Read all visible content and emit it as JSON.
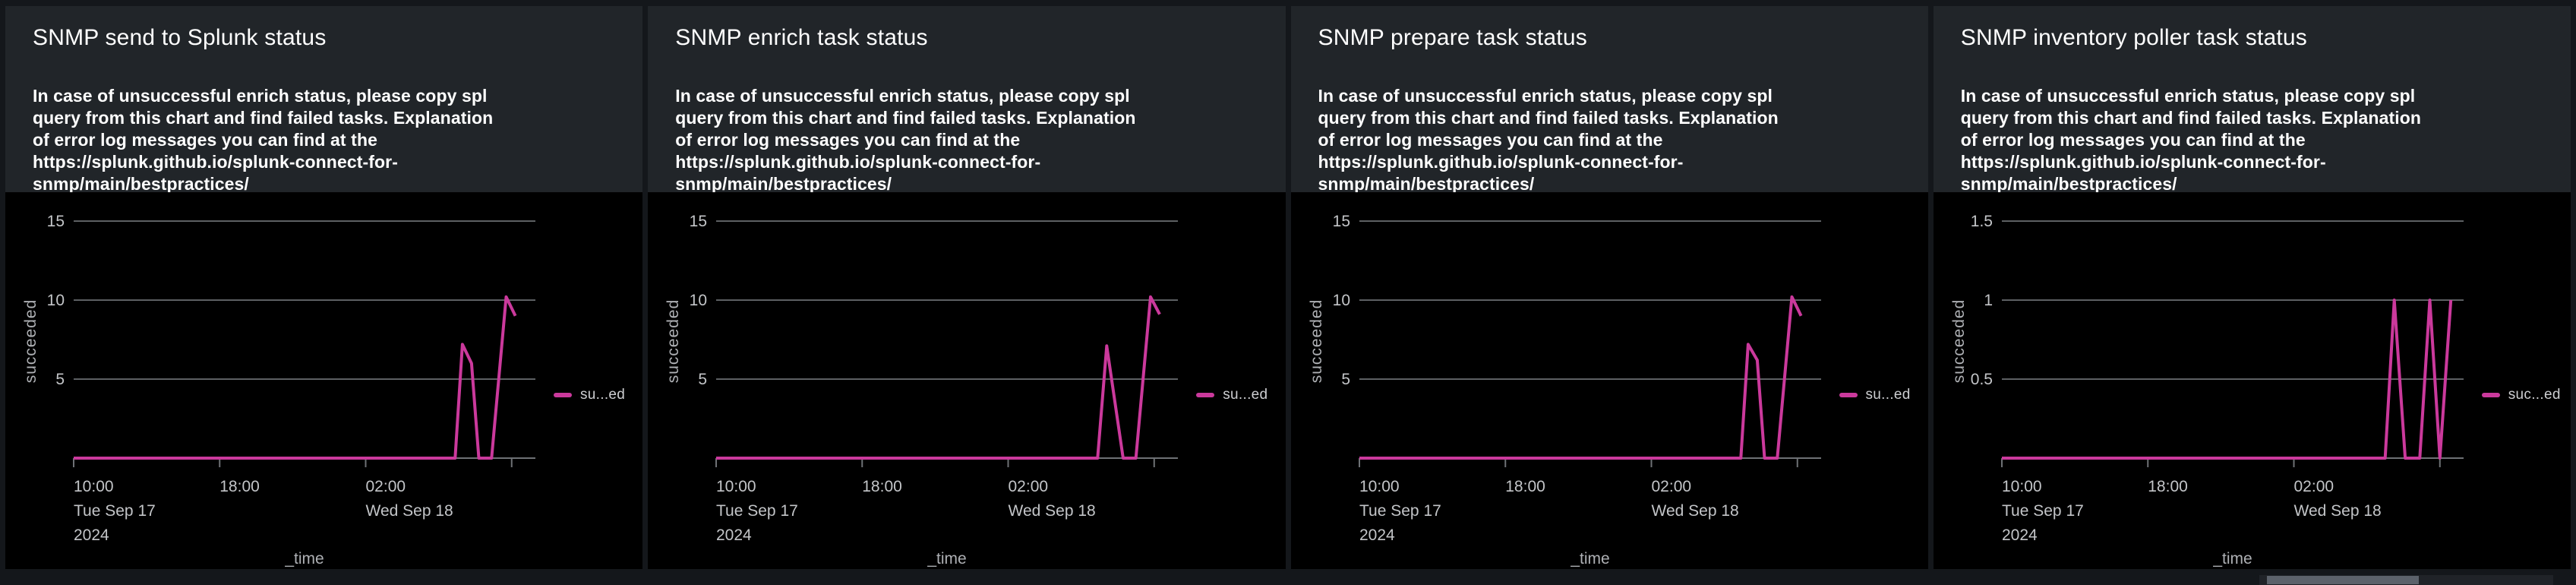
{
  "theme": {
    "page_bg": "#14171b",
    "panel_bg": "#212529",
    "viz_bg": "#000000",
    "title_color": "#ffffff",
    "description_color": "#ffffff",
    "grid_color": "#5d6063",
    "axis_color": "#6e7175",
    "tick_label_color": "#c3c5c8",
    "axis_title_color": "#aeb0b4",
    "legend_text_color": "#cdced1",
    "series_color": "#cb399c",
    "scrollbar_track": "#202328",
    "scrollbar_thumb": "#5c626b"
  },
  "shared": {
    "description": "In case of unsuccessful enrich status, please copy spl\nquery from this chart and find failed tasks. Explanation\nof error log messages you can find at the\nhttps://splunk.github.io/splunk-connect-for-\nsnmp/main/bestpractices/"
  },
  "panels": [
    {
      "title": "SNMP send to Splunk status"
    },
    {
      "title": "SNMP enrich task status"
    },
    {
      "title": "SNMP prepare task status"
    },
    {
      "title": "SNMP inventory poller task status"
    }
  ],
  "chart_data": [
    {
      "type": "line",
      "title": "SNMP send to Splunk status",
      "xlabel": "_time",
      "ylabel": "succeeded",
      "legend_label": "su...ed",
      "series_name": "succeeded",
      "series_color": "#cb399c",
      "grid": true,
      "legend_position": "right",
      "x_start": "Tue Sep 17 2024 10:00",
      "xlim_hours": [
        0,
        25.3
      ],
      "ylim": [
        0,
        15.4
      ],
      "x_ticks": [
        {
          "h": 0,
          "time": "10:00",
          "day": "Tue Sep 17",
          "year": "2024"
        },
        {
          "h": 8,
          "time": "18:00"
        },
        {
          "h": 16,
          "time": "02:00",
          "day": "Wed Sep 18"
        },
        {
          "h": 24
        }
      ],
      "y_ticks": [
        {
          "v": 5,
          "label": "5"
        },
        {
          "v": 10,
          "label": "10"
        },
        {
          "v": 15,
          "label": "15"
        }
      ],
      "series": [
        {
          "name": "succeeded",
          "points": [
            [
              0,
              0
            ],
            [
              20.9,
              0
            ],
            [
              21.3,
              7.2
            ],
            [
              21.8,
              6.0
            ],
            [
              22.2,
              0
            ],
            [
              22.9,
              0
            ],
            [
              23.7,
              10.2
            ],
            [
              24.2,
              9.0
            ]
          ]
        }
      ]
    },
    {
      "type": "line",
      "title": "SNMP enrich task status",
      "xlabel": "_time",
      "ylabel": "succeeded",
      "legend_label": "su...ed",
      "series_name": "succeeded",
      "series_color": "#cb399c",
      "grid": true,
      "legend_position": "right",
      "x_start": "Tue Sep 17 2024 10:00",
      "xlim_hours": [
        0,
        25.3
      ],
      "ylim": [
        0,
        15.4
      ],
      "x_ticks": [
        {
          "h": 0,
          "time": "10:00",
          "day": "Tue Sep 17",
          "year": "2024"
        },
        {
          "h": 8,
          "time": "18:00"
        },
        {
          "h": 16,
          "time": "02:00",
          "day": "Wed Sep 18"
        },
        {
          "h": 24
        }
      ],
      "y_ticks": [
        {
          "v": 5,
          "label": "5"
        },
        {
          "v": 10,
          "label": "10"
        },
        {
          "v": 15,
          "label": "15"
        }
      ],
      "series": [
        {
          "name": "succeeded",
          "points": [
            [
              0,
              0
            ],
            [
              20.9,
              0
            ],
            [
              21.4,
              7.1
            ],
            [
              22.3,
              0
            ],
            [
              23.0,
              0
            ],
            [
              23.8,
              10.2
            ],
            [
              24.3,
              9.1
            ]
          ]
        }
      ]
    },
    {
      "type": "line",
      "title": "SNMP prepare task status",
      "xlabel": "_time",
      "ylabel": "succeeded",
      "legend_label": "su...ed",
      "series_name": "succeeded",
      "series_color": "#cb399c",
      "grid": true,
      "legend_position": "right",
      "x_start": "Tue Sep 17 2024 10:00",
      "xlim_hours": [
        0,
        25.3
      ],
      "ylim": [
        0,
        15.4
      ],
      "x_ticks": [
        {
          "h": 0,
          "time": "10:00",
          "day": "Tue Sep 17",
          "year": "2024"
        },
        {
          "h": 8,
          "time": "18:00"
        },
        {
          "h": 16,
          "time": "02:00",
          "day": "Wed Sep 18"
        },
        {
          "h": 24
        }
      ],
      "y_ticks": [
        {
          "v": 5,
          "label": "5"
        },
        {
          "v": 10,
          "label": "10"
        },
        {
          "v": 15,
          "label": "15"
        }
      ],
      "series": [
        {
          "name": "succeeded",
          "points": [
            [
              0,
              0
            ],
            [
              20.9,
              0
            ],
            [
              21.3,
              7.2
            ],
            [
              21.8,
              6.2
            ],
            [
              22.2,
              0
            ],
            [
              22.9,
              0
            ],
            [
              23.7,
              10.2
            ],
            [
              24.2,
              9.0
            ]
          ]
        }
      ]
    },
    {
      "type": "line",
      "title": "SNMP inventory poller task status",
      "xlabel": "_time",
      "ylabel": "succeeded",
      "legend_label": "suc...ed",
      "series_name": "succeeded",
      "series_color": "#cb399c",
      "grid": true,
      "legend_position": "right",
      "x_start": "Tue Sep 17 2024 10:00",
      "xlim_hours": [
        0,
        25.3
      ],
      "ylim": [
        0,
        1.54
      ],
      "x_ticks": [
        {
          "h": 0,
          "time": "10:00",
          "day": "Tue Sep 17",
          "year": "2024"
        },
        {
          "h": 8,
          "time": "18:00"
        },
        {
          "h": 16,
          "time": "02:00",
          "day": "Wed Sep 18"
        },
        {
          "h": 24
        }
      ],
      "y_ticks": [
        {
          "v": 0.5,
          "label": "0.5"
        },
        {
          "v": 1,
          "label": "1"
        },
        {
          "v": 1.5,
          "label": "1.5"
        }
      ],
      "series": [
        {
          "name": "succeeded",
          "points": [
            [
              0,
              0
            ],
            [
              21.0,
              0
            ],
            [
              21.5,
              1
            ],
            [
              22.1,
              0
            ],
            [
              22.9,
              0
            ],
            [
              23.45,
              1
            ],
            [
              24.0,
              0
            ],
            [
              24.6,
              1
            ]
          ]
        }
      ]
    }
  ]
}
